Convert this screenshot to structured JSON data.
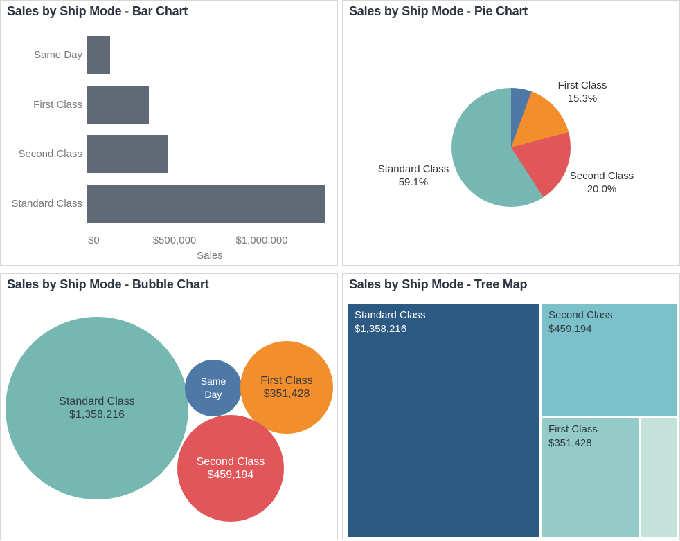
{
  "dashboard": {
    "panels": {
      "bar": {
        "title": "Sales by Ship Mode - Bar Chart"
      },
      "pie": {
        "title": "Sales by Ship Mode - Pie Chart"
      },
      "bubble": {
        "title": "Sales by Ship Mode - Bubble Chart"
      },
      "treemap": {
        "title": "Sales by Ship Mode - Tree Map"
      }
    }
  },
  "colors": {
    "bar": "#5f6a76",
    "same_day": "#4e79a7",
    "first_class": "#f28e2b",
    "second_class": "#e15759",
    "standard_class": "#76b7b2",
    "treemap_standard": "#2d5a85",
    "treemap_second": "#7cc0ca",
    "treemap_first": "#94cac8",
    "treemap_same_day": "#c5e2da",
    "axis_text": "#7a7a7a",
    "dark_label": "#333333",
    "title_text": "#2c3540",
    "panel_border": "#d6d6d6"
  },
  "chart_data": [
    {
      "type": "bar",
      "title": "Sales by Ship Mode - Bar Chart",
      "orientation": "horizontal",
      "categories": [
        "Same Day",
        "First Class",
        "Second Class",
        "Standard Class"
      ],
      "values": [
        128363,
        351428,
        459194,
        1358216
      ],
      "xlabel": "Sales",
      "xlim": [
        0,
        1360000
      ],
      "x_ticks": [
        {
          "value": 0,
          "label": "$0"
        },
        {
          "value": 500000,
          "label": "$500,000"
        },
        {
          "value": 1000000,
          "label": "$1,000,000"
        }
      ],
      "grid": false,
      "legend": "none",
      "bar_color_key": "bar"
    },
    {
      "type": "pie",
      "title": "Sales by Ship Mode - Pie Chart",
      "categories": [
        "Same Day",
        "First Class",
        "Second Class",
        "Standard Class"
      ],
      "values": [
        128363,
        351428,
        459194,
        1358216
      ],
      "color_keys": [
        "same_day",
        "first_class",
        "second_class",
        "standard_class"
      ],
      "start_angle": "top",
      "direction": "clockwise",
      "labels": [
        {
          "category": "First Class",
          "percent": "15.3%"
        },
        {
          "category": "Second Class",
          "percent": "20.0%"
        },
        {
          "category": "Standard Class",
          "percent": "59.1%"
        }
      ]
    },
    {
      "type": "bubble",
      "title": "Sales by Ship Mode - Bubble Chart",
      "bubbles": [
        {
          "category": "Standard Class",
          "value": 1358216,
          "value_label": "$1,358,216",
          "color_key": "standard_class",
          "text_lines": [
            "Standard Class",
            "$1,358,216"
          ]
        },
        {
          "category": "Same Day",
          "value": 128363,
          "value_label": "",
          "color_key": "same_day",
          "text_lines": [
            "Same",
            "Day"
          ]
        },
        {
          "category": "First Class",
          "value": 351428,
          "value_label": "$351,428",
          "color_key": "first_class",
          "text_lines": [
            "First Class",
            "$351,428"
          ]
        },
        {
          "category": "Second Class",
          "value": 459194,
          "value_label": "$459,194",
          "color_key": "second_class",
          "text_lines": [
            "Second Class",
            "$459,194"
          ]
        }
      ]
    },
    {
      "type": "treemap",
      "title": "Sales by Ship Mode - Tree Map",
      "tiles": [
        {
          "category": "Standard Class",
          "value": 1358216,
          "value_label": "$1,358,216",
          "color_key": "treemap_standard",
          "labeled": true
        },
        {
          "category": "Second Class",
          "value": 459194,
          "value_label": "$459,194",
          "color_key": "treemap_second",
          "labeled": true
        },
        {
          "category": "First Class",
          "value": 351428,
          "value_label": "$351,428",
          "color_key": "treemap_first",
          "labeled": true
        },
        {
          "category": "Same Day",
          "value": 128363,
          "value_label": "",
          "color_key": "treemap_same_day",
          "labeled": false
        }
      ]
    }
  ]
}
